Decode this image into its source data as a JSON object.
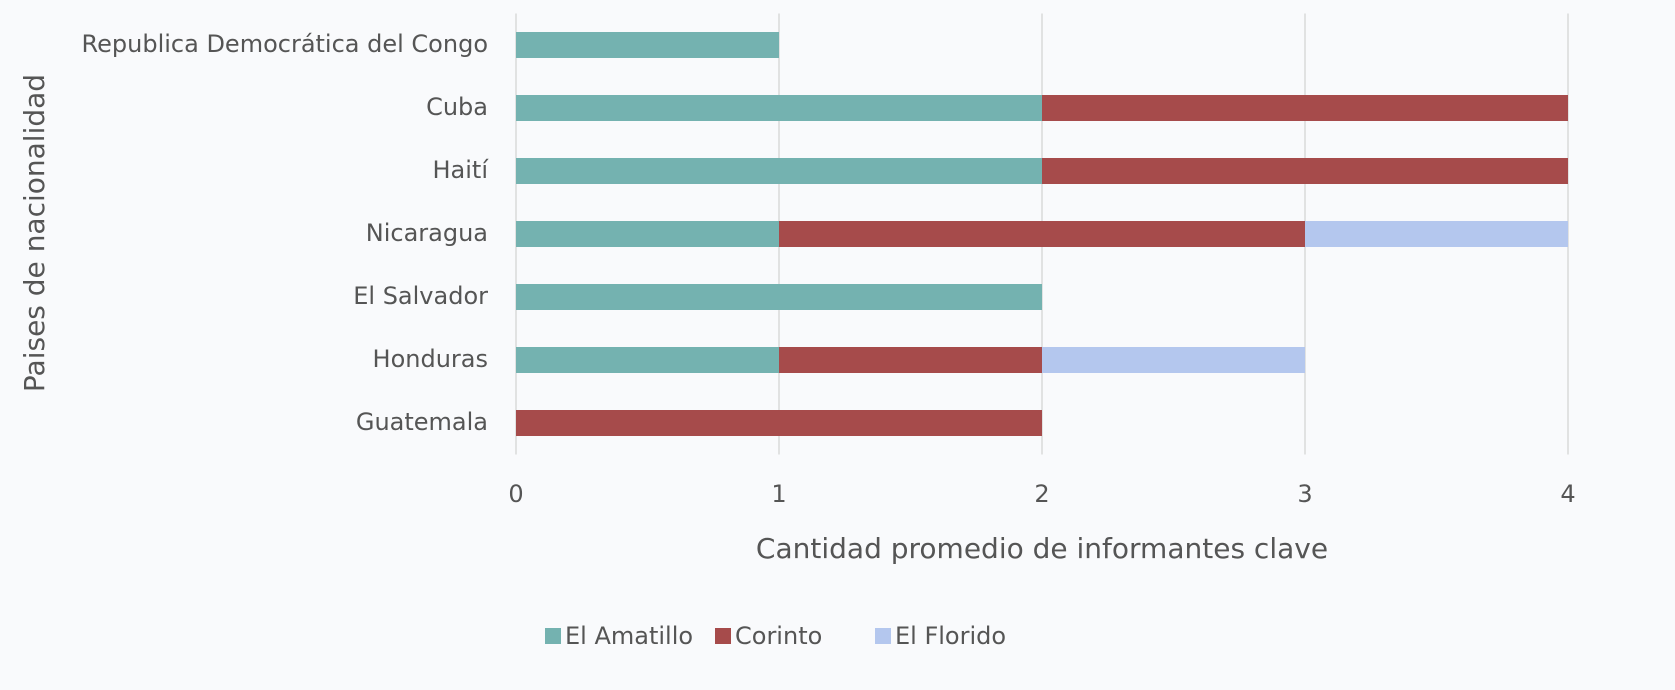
{
  "chart_data": {
    "type": "stacked-barh",
    "xlabel": "Cantidad promedio de informantes clave",
    "ylabel": "Paises de nacionalidad",
    "categories": [
      "Republica Democrática del Congo",
      "Cuba",
      "Haití",
      "Nicaragua",
      "El Salvador",
      "Honduras",
      "Guatemala"
    ],
    "series": [
      {
        "name": "El Amatillo",
        "color": "#74b2b0",
        "values": [
          1,
          2,
          2,
          1,
          2,
          1,
          0
        ]
      },
      {
        "name": "Corinto",
        "color": "#a64b4b",
        "values": [
          0,
          2,
          2,
          2,
          0,
          1,
          2
        ]
      },
      {
        "name": "El Florido",
        "color": "#b4c7ee",
        "values": [
          0,
          0,
          0,
          1,
          0,
          1,
          0
        ]
      }
    ],
    "xlim": [
      0,
      4
    ],
    "xticks": [
      0,
      1,
      2,
      3,
      4
    ],
    "grid": true,
    "legend": "bottom"
  }
}
